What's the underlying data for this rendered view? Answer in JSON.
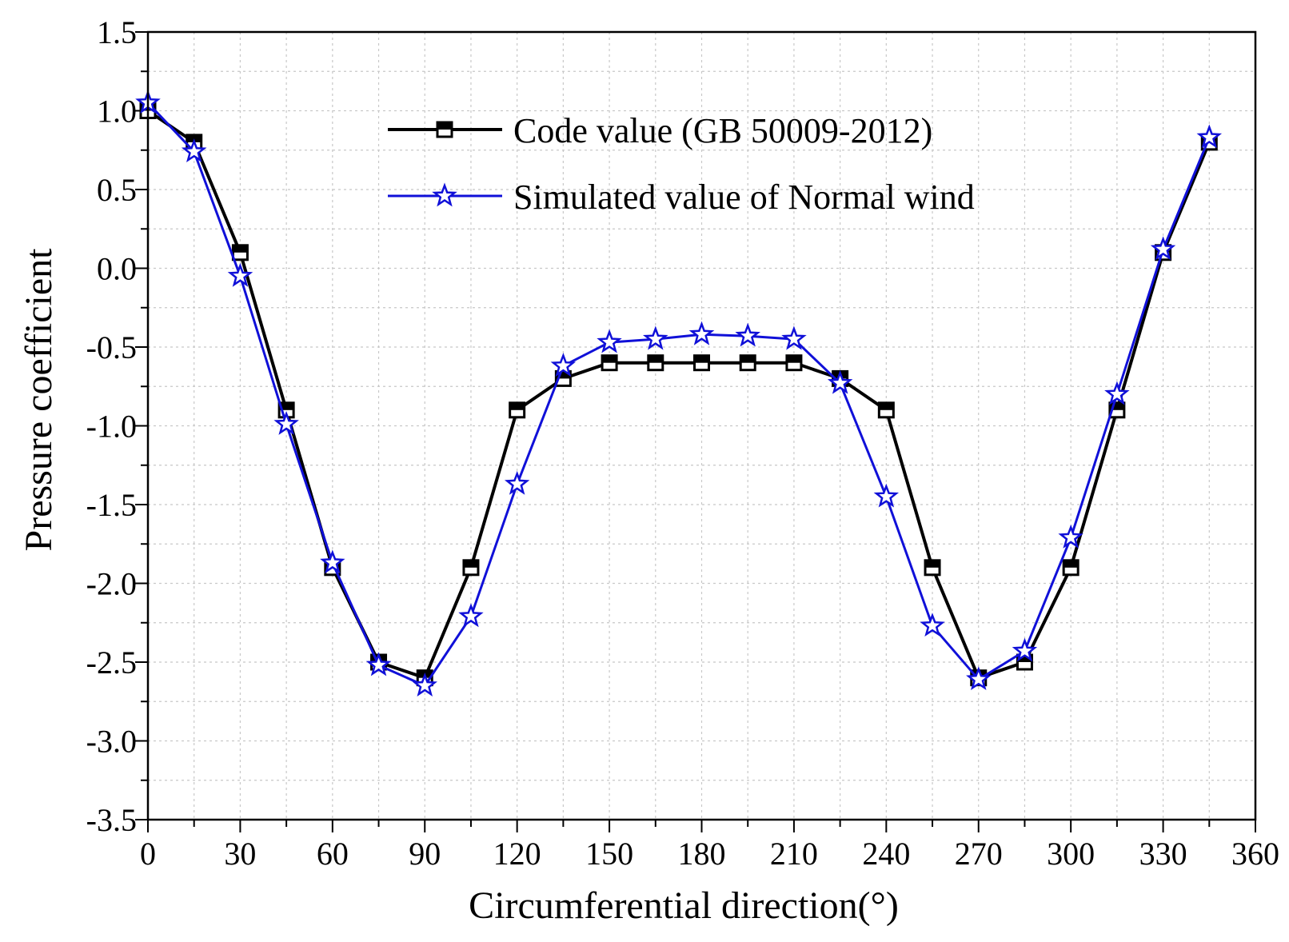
{
  "chart_data": {
    "type": "line",
    "title": "",
    "xlabel": "Circumferential direction(°)",
    "ylabel": "Pressure coefficient",
    "xlim": [
      0,
      360
    ],
    "ylim": [
      -3.5,
      1.5
    ],
    "xticks": [
      0,
      30,
      60,
      90,
      120,
      150,
      180,
      210,
      240,
      270,
      300,
      330,
      360
    ],
    "yticks": [
      1.5,
      1.0,
      0.5,
      0.0,
      -0.5,
      -1.0,
      -1.5,
      -2.0,
      -2.5,
      -3.0,
      -3.5
    ],
    "xtick_labels": [
      "0",
      "30",
      "60",
      "90",
      "120",
      "150",
      "180",
      "210",
      "240",
      "270",
      "300",
      "330",
      "360"
    ],
    "ytick_labels": [
      "1.5",
      "1.0",
      "0.5",
      "0.0",
      "-0.5",
      "-1.0",
      "-1.5",
      "-2.0",
      "-2.5",
      "-3.0",
      "-3.5"
    ],
    "grid": true,
    "legend_position": "top-center",
    "x": [
      0,
      15,
      30,
      45,
      60,
      75,
      90,
      105,
      120,
      135,
      150,
      165,
      180,
      195,
      210,
      225,
      240,
      255,
      270,
      285,
      300,
      315,
      330,
      345
    ],
    "series": [
      {
        "name": "Code value (GB 50009-2012)",
        "color": "#000000",
        "marker": "square",
        "values": [
          1.0,
          0.8,
          0.1,
          -0.9,
          -1.9,
          -2.5,
          -2.6,
          -1.9,
          -0.9,
          -0.7,
          -0.6,
          -0.6,
          -0.6,
          -0.6,
          -0.6,
          -0.7,
          -0.9,
          -1.9,
          -2.6,
          -2.5,
          -1.9,
          -0.9,
          0.1,
          0.8
        ]
      },
      {
        "name": "Simulated value of Normal wind",
        "color": "#1010d8",
        "marker": "star",
        "values": [
          1.05,
          0.74,
          -0.05,
          -0.99,
          -1.87,
          -2.52,
          -2.65,
          -2.21,
          -1.37,
          -0.62,
          -0.47,
          -0.45,
          -0.42,
          -0.43,
          -0.45,
          -0.73,
          -1.45,
          -2.27,
          -2.61,
          -2.43,
          -1.71,
          -0.8,
          0.12,
          0.83
        ]
      }
    ]
  }
}
